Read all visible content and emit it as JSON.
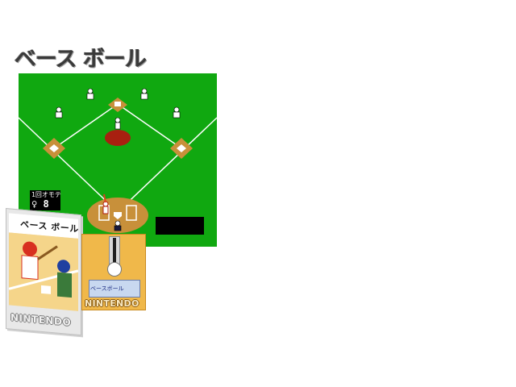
{
  "page": {
    "title": "ベース ボール"
  },
  "game": {
    "scoreboard": {
      "inning": "1回オモテ",
      "score": "8"
    },
    "colors": {
      "grass": "#10a810",
      "infield_dirt": "#c8903a",
      "mound": "#a82010",
      "lines": "#ffffff"
    }
  },
  "packaging": {
    "box_label": "ベース ボール",
    "box_brand": "NINTENDO",
    "disk_label": "ベースボール",
    "disk_brand": "NINTENDO"
  }
}
